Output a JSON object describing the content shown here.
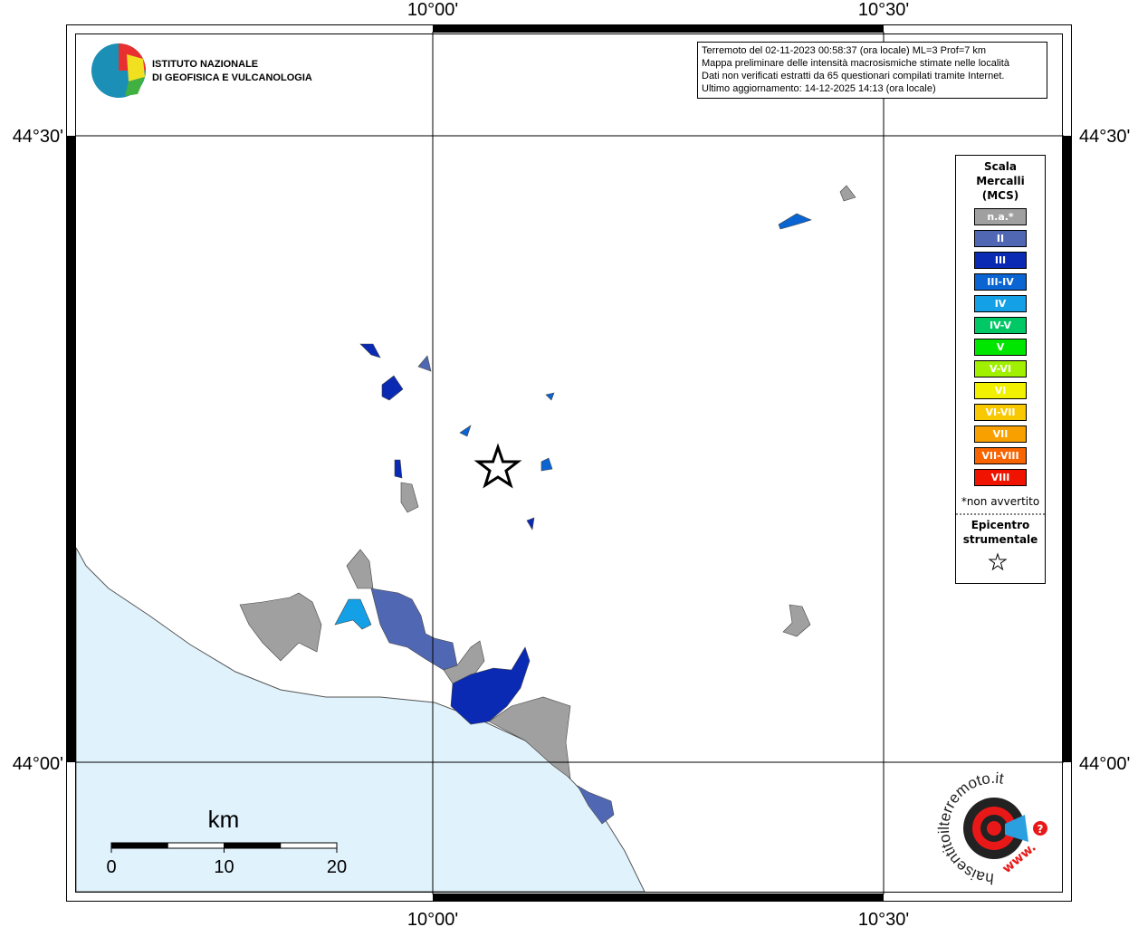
{
  "map": {
    "grid_labels": {
      "lon_1": "10°00'",
      "lon_2": "10°30'",
      "lat_1": "44°30'",
      "lat_2": "44°00'"
    }
  },
  "logo": {
    "line_1": "ISTITUTO NAZIONALE",
    "line_2": "DI GEOFISICA E VULCANOLOGIA"
  },
  "info_lines": [
    "Terremoto del 02-11-2023 00:58:37 (ora locale) ML=3 Prof=7 km",
    "Mappa preliminare delle intensità macrosismiche stimate nelle località",
    "Dati non verificati estratti da 65 questionari compilati tramite Internet.",
    "Ultimo aggiornamento: 14-12-2025 14:13 (ora locale)"
  ],
  "legend": {
    "title_lines": [
      "Scala",
      "Mercalli",
      "(MCS)"
    ],
    "items": [
      {
        "label": "n.a.*",
        "color": "#a0a0a0"
      },
      {
        "label": "II",
        "color": "#5068b4"
      },
      {
        "label": "III",
        "color": "#0a2ab4"
      },
      {
        "label": "III-IV",
        "color": "#0a64d2"
      },
      {
        "label": "IV",
        "color": "#14a0e6"
      },
      {
        "label": "IV-V",
        "color": "#00c864"
      },
      {
        "label": "V",
        "color": "#00e600"
      },
      {
        "label": "V-VI",
        "color": "#a0f000"
      },
      {
        "label": "VI",
        "color": "#f0f000"
      },
      {
        "label": "VI-VII",
        "color": "#f8c800"
      },
      {
        "label": "VII",
        "color": "#f8a000"
      },
      {
        "label": "VII-VIII",
        "color": "#f86400"
      },
      {
        "label": "VIII",
        "color": "#f01400"
      }
    ],
    "note": "*non avvertito",
    "epicenter_lines": [
      "Epicentro",
      "strumentale"
    ]
  },
  "scale": {
    "unit": "km",
    "ticks": [
      0,
      10,
      20
    ]
  },
  "site_logo": {
    "text": "haisentitoilterremoto.it",
    "prefix": "www.",
    "mark": "?"
  }
}
